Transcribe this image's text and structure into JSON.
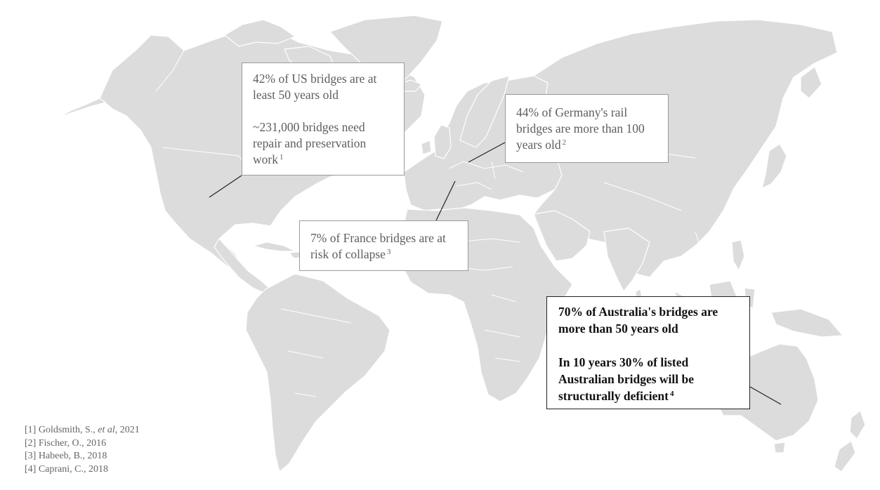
{
  "map": {
    "background": "#ffffff",
    "land_color": "#dcdcdc",
    "border_color": "#ffffff",
    "leader_color": "#222222"
  },
  "callouts": {
    "us": {
      "line1": "42% of US bridges are at least 50 years old",
      "line2": "~231,000 bridges need repair and preservation work",
      "ref": "1"
    },
    "germany": {
      "text": "44% of Germany's rail bridges are more than 100 years old",
      "ref": "2"
    },
    "france": {
      "text": "7% of France bridges are at risk of collapse",
      "ref": "3"
    },
    "australia": {
      "line1": "70% of Australia's bridges are more than 50 years old",
      "line2": "In 10 years 30% of listed Australian bridges will be structurally deficient",
      "ref": "4"
    }
  },
  "references": [
    {
      "num": "[1]",
      "author": "Goldsmith, S.,",
      "etal": "et al",
      "year": ", 2021"
    },
    {
      "num": "[2]",
      "author": "Fischer, O.,",
      "etal": "",
      "year": " 2016"
    },
    {
      "num": "[3]",
      "author": "Habeeb, B.,",
      "etal": "",
      "year": " 2018"
    },
    {
      "num": "[4]",
      "author": "Caprani, C.,",
      "etal": "",
      "year": " 2018"
    }
  ]
}
